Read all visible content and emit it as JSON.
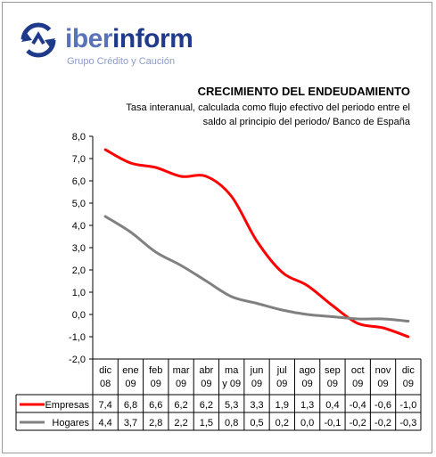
{
  "logo": {
    "brand_light": "iber",
    "brand_bold": "inform",
    "tagline": "Grupo Crédito y Caución"
  },
  "title": "CRECIMIENTO DEL ENDEUDAMIENTO",
  "subtitle_line1": "Tasa interanual, calculada como flujo efectivo del periodo entre el",
  "subtitle_line2": "saldo al principio del periodo/ Banco de España",
  "colors": {
    "empresas": "#ff0000",
    "hogares": "#808080",
    "brand": "#1f3a8a"
  },
  "chart_data": {
    "type": "line",
    "ylim": [
      -2.0,
      8.0
    ],
    "yticks": [
      "8,0",
      "7,0",
      "6,0",
      "5,0",
      "4,0",
      "3,0",
      "2,0",
      "1,0",
      "0,0",
      "-1,0",
      "-2,0"
    ],
    "categories": [
      [
        "dic",
        "08"
      ],
      [
        "ene",
        "09"
      ],
      [
        "feb",
        "09"
      ],
      [
        "mar",
        "09"
      ],
      [
        "abr",
        "09"
      ],
      [
        "ma",
        "y 09"
      ],
      [
        "jun",
        "09"
      ],
      [
        "jul",
        "09"
      ],
      [
        "ago",
        "09"
      ],
      [
        "sep",
        "09"
      ],
      [
        "oct",
        "09"
      ],
      [
        "nov",
        "09"
      ],
      [
        "dic",
        "09"
      ]
    ],
    "series": [
      {
        "name": "Empresas",
        "color": "#ff0000",
        "values": [
          7.4,
          6.8,
          6.6,
          6.2,
          6.2,
          5.3,
          3.3,
          1.9,
          1.3,
          0.4,
          -0.4,
          -0.6,
          -1.0
        ],
        "labels": [
          "7,4",
          "6,8",
          "6,6",
          "6,2",
          "6,2",
          "5,3",
          "3,3",
          "1,9",
          "1,3",
          "0,4",
          "-0,4",
          "-0,6",
          "-1,0"
        ]
      },
      {
        "name": "Hogares",
        "color": "#808080",
        "values": [
          4.4,
          3.7,
          2.8,
          2.2,
          1.5,
          0.8,
          0.5,
          0.2,
          0.0,
          -0.1,
          -0.2,
          -0.2,
          -0.3
        ],
        "labels": [
          "4,4",
          "3,7",
          "2,8",
          "2,2",
          "1,5",
          "0,8",
          "0,5",
          "0,2",
          "0,0",
          "-0,1",
          "-0,2",
          "-0,2",
          "-0,3"
        ]
      }
    ]
  }
}
